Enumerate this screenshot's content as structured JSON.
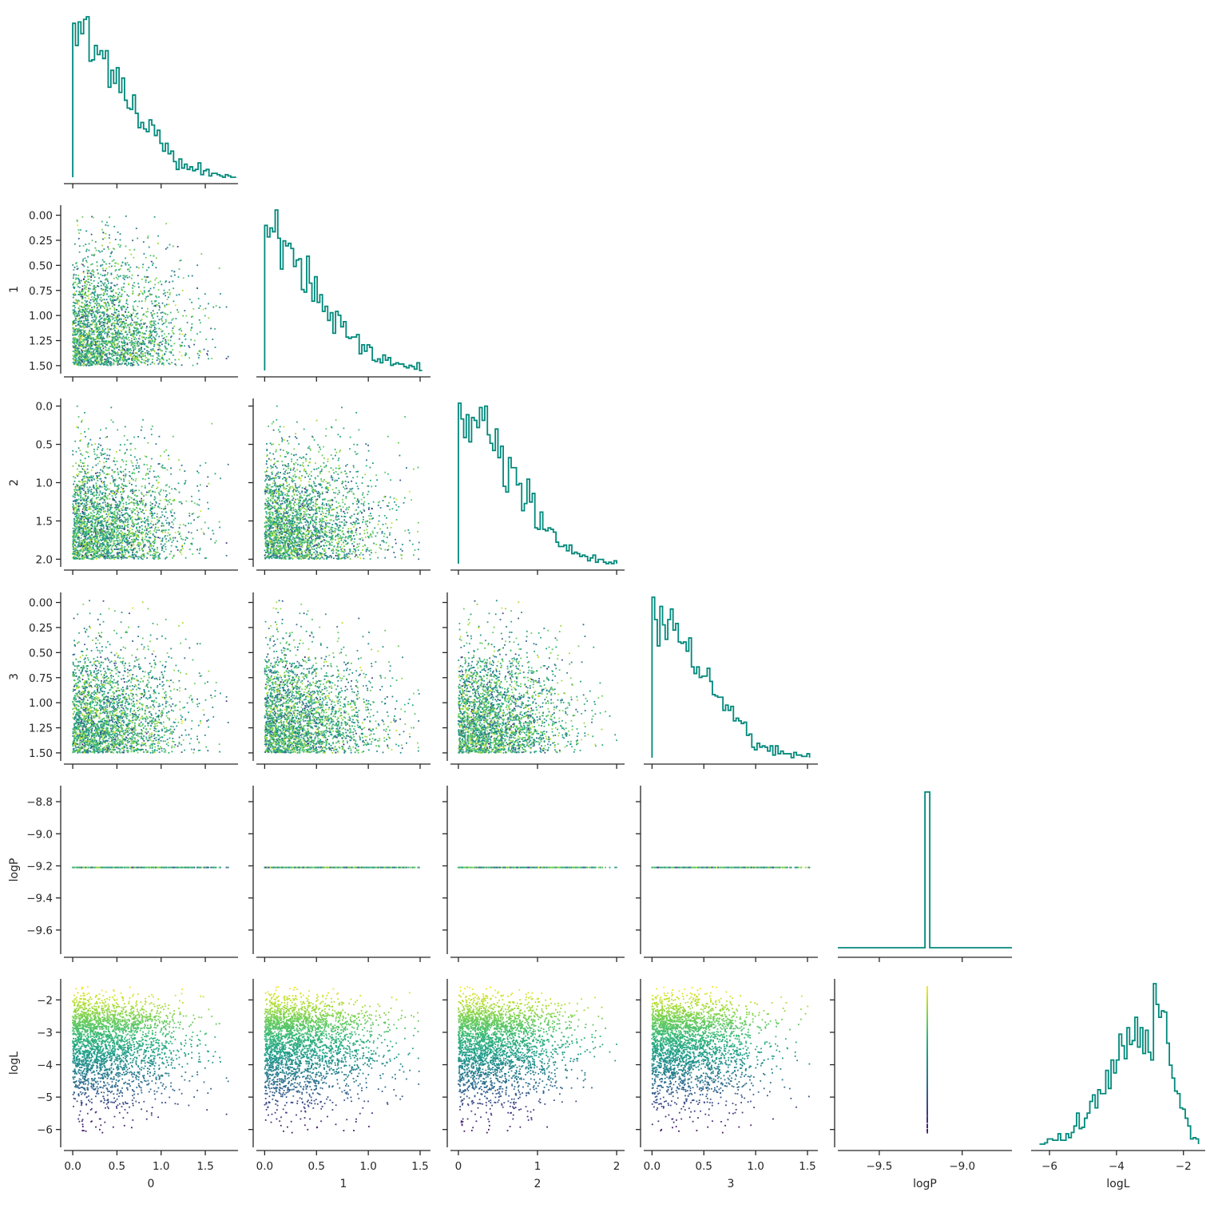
{
  "chart_data": {
    "type": "corner",
    "description_level": "pairwise scatter + 1D histograms (lower triangle)",
    "variables": [
      "0",
      "1",
      "2",
      "3",
      "logP",
      "logL"
    ],
    "axis_labels": [
      "0",
      "1",
      "2",
      "3",
      "logP",
      "logL"
    ],
    "ranges": [
      [
        -0.1,
        1.87
      ],
      [
        -0.08,
        1.6
      ],
      [
        -0.1,
        2.1
      ],
      [
        -0.08,
        1.6
      ],
      [
        -9.75,
        -8.7
      ],
      [
        -6.55,
        -1.35
      ]
    ],
    "ticks": {
      "0": [
        0.0,
        0.5,
        1.0,
        1.5
      ],
      "1": [
        0.0,
        0.25,
        0.5,
        0.75,
        1.0,
        1.25,
        1.5
      ],
      "1x": [
        0.0,
        0.5,
        1.0,
        1.5
      ],
      "2": [
        0.0,
        0.5,
        1.0,
        1.5,
        2.0
      ],
      "2x": [
        0,
        1,
        2
      ],
      "3": [
        0.0,
        0.25,
        0.5,
        0.75,
        1.0,
        1.25,
        1.5
      ],
      "3x": [
        0.0,
        0.5,
        1.0,
        1.5
      ],
      "logP": [
        -8.8,
        -9.0,
        -9.2,
        -9.4,
        -9.6
      ],
      "logPx": [
        -9.5,
        -9.0
      ],
      "logL": [
        -2,
        -3,
        -4,
        -5,
        -6
      ],
      "logLx": [
        -6,
        -4,
        -2
      ]
    },
    "tick_labels": {
      "x0": [
        "0.0",
        "0.5",
        "1.0",
        "1.5"
      ],
      "x1": [
        "0.0",
        "0.5",
        "1.0",
        "1.5"
      ],
      "x2": [
        "0",
        "1",
        "2"
      ],
      "x3": [
        "0.0",
        "0.5",
        "1.0",
        "1.5"
      ],
      "x4": [
        "−9.5",
        "−9.0"
      ],
      "x5": [
        "−6",
        "−4",
        "−2"
      ],
      "y1": [
        "1.50",
        "1.25",
        "1.00",
        "0.75",
        "0.50",
        "0.25",
        "0.00"
      ],
      "y2": [
        "2.0",
        "1.5",
        "1.0",
        "0.5",
        "0.0"
      ],
      "y3": [
        "1.50",
        "1.25",
        "1.00",
        "0.75",
        "0.50",
        "0.25",
        "0.00"
      ],
      "y4": [
        "−8.8",
        "−9.0",
        "−9.2",
        "−9.4",
        "−9.6"
      ],
      "y5": [
        "−2",
        "−3",
        "−4",
        "−5",
        "−6"
      ]
    },
    "logP_constant": -9.21,
    "histograms": {
      "0": {
        "range": [
          0,
          1.85
        ],
        "bins": 60,
        "shape": "half-normal",
        "peak_at": 0.0
      },
      "1": {
        "range": [
          0,
          1.52
        ],
        "bins": 60,
        "shape": "half-normal",
        "peak_at": 0.0
      },
      "2": {
        "range": [
          0,
          2.0
        ],
        "bins": 60,
        "shape": "half-normal",
        "peak_at": 0.0
      },
      "3": {
        "range": [
          0,
          1.52
        ],
        "bins": 60,
        "shape": "half-normal",
        "peak_at": 0.0
      },
      "logP": {
        "value": -9.21,
        "shape": "single spike"
      },
      "logL": {
        "range": [
          -6.3,
          -1.55
        ],
        "bins": 60,
        "mode": -2.95,
        "shape": "left-skewed"
      }
    },
    "scatter": {
      "n_points_per_panel": 2600,
      "colormap": "viridis",
      "color_by": "logL",
      "color_range": [
        -6.3,
        -1.55
      ]
    },
    "colors": {
      "histogram": "#00897b",
      "axes": "#262626",
      "viridis": [
        "#440154",
        "#482878",
        "#3e4989",
        "#31688e",
        "#26828e",
        "#1f9e89",
        "#35b779",
        "#6ece58",
        "#b5de2b",
        "#fde725"
      ]
    },
    "grid": false,
    "legend": "none"
  }
}
